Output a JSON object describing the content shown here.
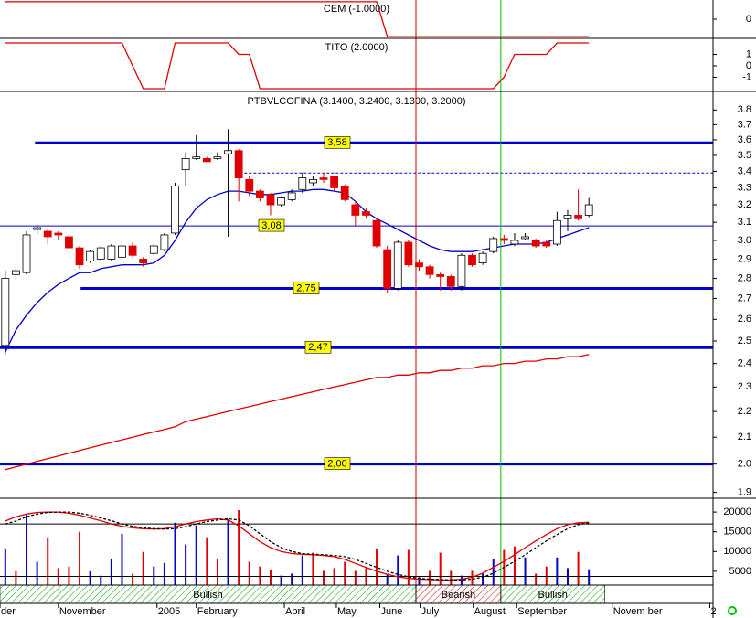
{
  "chart_data": [
    {
      "type": "line",
      "title": "CEM (-1.0000)",
      "xlim": [
        -0.5,
        66.7
      ],
      "ylim": [
        -1.1,
        1.1
      ],
      "yticks": [
        0
      ],
      "x": [
        0,
        1,
        2,
        3,
        4,
        5,
        6,
        7,
        8,
        9,
        10,
        11,
        12,
        13,
        14,
        15,
        16,
        17,
        18,
        19,
        20,
        21,
        22,
        23,
        24,
        25,
        26,
        27,
        28,
        29,
        30,
        31,
        32,
        33,
        34,
        35,
        36,
        37,
        38,
        39,
        40,
        41,
        42,
        43,
        44,
        45,
        46,
        47,
        48,
        49,
        50,
        51,
        52,
        53,
        54,
        55
      ],
      "series": [
        {
          "color": "#e00000",
          "values": [
            1,
            1,
            1,
            1,
            1,
            1,
            1,
            1,
            1,
            1,
            1,
            1,
            1,
            1,
            1,
            1,
            1,
            1,
            1,
            1,
            1,
            1,
            1,
            1,
            1,
            1,
            1,
            1,
            1,
            1,
            1,
            1,
            1,
            1,
            1,
            1,
            -1,
            -1,
            -1,
            -1,
            -1,
            -1,
            -1,
            -1,
            -1,
            -1,
            -1,
            -1,
            -1,
            -1,
            -1,
            -1,
            -1,
            -1,
            -1,
            -1
          ]
        }
      ]
    },
    {
      "type": "line",
      "title": "TITO (2.0000)",
      "xlim": [
        -0.5,
        66.7
      ],
      "ylim": [
        -2.24,
        2.4
      ],
      "yticks": [
        1,
        0,
        -1
      ],
      "x": [
        0,
        1,
        2,
        3,
        4,
        5,
        6,
        7,
        8,
        9,
        10,
        11,
        12,
        13,
        14,
        15,
        16,
        17,
        18,
        19,
        20,
        21,
        22,
        23,
        24,
        25,
        26,
        27,
        28,
        29,
        30,
        31,
        32,
        33,
        34,
        35,
        36,
        37,
        38,
        39,
        40,
        41,
        42,
        43,
        44,
        45,
        46,
        47,
        48,
        49,
        50,
        51,
        52,
        53,
        54,
        55
      ],
      "series": [
        {
          "color": "#e00000",
          "values": [
            2,
            2,
            2,
            2,
            2,
            2,
            2,
            2,
            2,
            2,
            2,
            2,
            0,
            -2,
            -2,
            -2,
            2,
            2,
            2,
            2,
            2,
            2,
            1,
            1,
            -2,
            -2,
            -2,
            -2,
            -2,
            -2,
            -2,
            -2,
            -2,
            -2,
            -2,
            -2,
            -2,
            -2,
            -2,
            -2,
            -2,
            -2,
            -2,
            -2,
            -2,
            -2,
            -2,
            -1,
            1,
            1,
            1,
            1,
            2,
            2,
            2,
            2
          ]
        }
      ]
    },
    {
      "type": "candlestick",
      "title": "PTBVLCOFINA (3.1400, 3.2400, 3.1300, 3.2000)",
      "log_scale": true,
      "xlim": [
        -0.5,
        66.7
      ],
      "ylim": [
        1.88,
        3.93
      ],
      "yticks": [
        3.8,
        3.7,
        3.6,
        3.5,
        3.4,
        3.3,
        3.2,
        3.1,
        {
          "value": 3,
          "label": "3.0"
        },
        2.9,
        2.8,
        2.7,
        2.6,
        2.5,
        2.4,
        2.3,
        2.2,
        2.1,
        {
          "value": 2,
          "label": "2.0"
        },
        1.9
      ],
      "up_color": "#ffffff",
      "down_color": "#e00000",
      "outline_color": "#000000",
      "x": [
        0,
        1,
        2,
        3,
        4,
        5,
        6,
        7,
        8,
        9,
        10,
        11,
        12,
        13,
        14,
        15,
        16,
        17,
        18,
        19,
        20,
        21,
        22,
        23,
        24,
        25,
        26,
        27,
        28,
        29,
        30,
        31,
        32,
        33,
        34,
        35,
        36,
        37,
        38,
        39,
        40,
        41,
        42,
        43,
        44,
        45,
        46,
        47,
        48,
        49,
        50,
        51,
        52,
        53,
        54,
        55
      ],
      "open": [
        2.48,
        2.82,
        2.83,
        3.06,
        3.05,
        3.04,
        3.02,
        2.96,
        2.89,
        2.9,
        2.9,
        2.91,
        2.97,
        2.9,
        2.93,
        2.95,
        3.04,
        3.41,
        3.48,
        3.48,
        3.48,
        3.51,
        3.53,
        3.35,
        3.28,
        3.26,
        3.2,
        3.23,
        3.29,
        3.33,
        3.36,
        3.37,
        3.31,
        3.2,
        3.16,
        3.11,
        2.95,
        2.75,
        2.99,
        2.88,
        2.86,
        2.82,
        2.81,
        2.76,
        2.92,
        2.88,
        2.94,
        3.01,
        2.98,
        3.01,
        3.0,
        2.99,
        2.98,
        3.12,
        3.14,
        3.14
      ],
      "high": [
        2.84,
        2.86,
        3.05,
        3.09,
        3.06,
        3.05,
        3.03,
        2.97,
        2.95,
        2.97,
        2.98,
        2.98,
        2.99,
        2.91,
        2.98,
        3.04,
        3.33,
        3.52,
        3.63,
        3.49,
        3.52,
        3.67,
        3.54,
        3.37,
        3.29,
        3.27,
        3.25,
        3.29,
        3.39,
        3.37,
        3.39,
        3.37,
        3.32,
        3.22,
        3.18,
        3.12,
        2.97,
        3.0,
        3.0,
        2.9,
        2.87,
        2.83,
        2.82,
        2.93,
        2.93,
        2.94,
        3.02,
        3.03,
        3.04,
        3.04,
        3.01,
        3.0,
        3.16,
        3.17,
        3.29,
        3.24
      ],
      "low": [
        2.44,
        2.8,
        2.82,
        3.03,
        2.98,
        3.0,
        2.95,
        2.85,
        2.88,
        2.89,
        2.89,
        2.9,
        2.91,
        2.86,
        2.92,
        2.94,
        3.03,
        3.31,
        3.47,
        3.46,
        3.47,
        3.02,
        3.22,
        3.25,
        3.22,
        3.14,
        3.19,
        3.22,
        3.27,
        3.31,
        3.33,
        3.28,
        3.22,
        3.08,
        3.12,
        2.96,
        2.73,
        2.74,
        2.86,
        2.84,
        2.8,
        2.74,
        2.74,
        2.74,
        2.86,
        2.87,
        2.93,
        2.98,
        2.97,
        3.0,
        2.96,
        2.96,
        2.97,
        3.05,
        3.11,
        3.13
      ],
      "close": [
        2.8,
        2.84,
        3.03,
        3.07,
        3.02,
        3.03,
        2.96,
        2.87,
        2.94,
        2.96,
        2.97,
        2.97,
        2.92,
        2.88,
        2.97,
        3.03,
        3.31,
        3.48,
        3.49,
        3.46,
        3.49,
        3.53,
        3.36,
        3.28,
        3.24,
        3.2,
        3.24,
        3.27,
        3.36,
        3.35,
        3.35,
        3.3,
        3.23,
        3.14,
        3.14,
        2.97,
        2.75,
        2.99,
        2.87,
        2.86,
        2.82,
        2.81,
        2.76,
        2.92,
        2.87,
        2.93,
        3.01,
        3.0,
        3.0,
        3.02,
        2.97,
        2.97,
        3.11,
        3.14,
        3.12,
        3.2
      ],
      "series": [
        {
          "color": "#0000cc",
          "values": [
            2.45,
            2.55,
            2.62,
            2.68,
            2.73,
            2.77,
            2.8,
            2.83,
            2.83,
            2.85,
            2.86,
            2.87,
            2.87,
            2.87,
            2.88,
            2.92,
            3.0,
            3.1,
            3.18,
            3.23,
            3.26,
            3.28,
            3.28,
            3.27,
            3.26,
            3.26,
            3.27,
            3.28,
            3.28,
            3.29,
            3.29,
            3.28,
            3.27,
            3.22,
            3.16,
            3.12,
            3.09,
            3.06,
            3.03,
            3.0,
            2.97,
            2.95,
            2.94,
            2.94,
            2.94,
            2.95,
            2.96,
            2.97,
            2.98,
            2.98,
            2.98,
            2.99,
            3.01,
            3.03,
            3.05,
            3.07
          ]
        },
        {
          "color": "#e00000",
          "values": [
            1.98,
            1.99,
            2.0,
            2.01,
            2.02,
            2.03,
            2.04,
            2.05,
            2.06,
            2.07,
            2.08,
            2.09,
            2.1,
            2.11,
            2.12,
            2.13,
            2.14,
            2.16,
            2.17,
            2.18,
            2.19,
            2.2,
            2.21,
            2.22,
            2.23,
            2.24,
            2.25,
            2.26,
            2.27,
            2.28,
            2.29,
            2.3,
            2.31,
            2.32,
            2.33,
            2.34,
            2.34,
            2.35,
            2.35,
            2.36,
            2.36,
            2.37,
            2.37,
            2.38,
            2.38,
            2.39,
            2.39,
            2.4,
            2.4,
            2.41,
            2.41,
            2.42,
            2.42,
            2.43,
            2.43,
            2.44
          ]
        }
      ],
      "levels": [
        {
          "value": 3.58,
          "label": "3,58",
          "start": 2.8,
          "color": "#0000cc"
        },
        {
          "value": 3.08,
          "label": "3,08",
          "start": -0.5,
          "color": "#0000cc"
        },
        {
          "value": 2.75,
          "label": "2,75",
          "start": 7.1,
          "color": "#0000cc"
        },
        {
          "value": 2.47,
          "label": "2,47",
          "start": -0.5,
          "color": "#0000cc"
        },
        {
          "value": 2.0,
          "label": "2,00",
          "start": -0.5,
          "color": "#0000cc"
        }
      ],
      "reference_lines": [
        {
          "value": 3.39,
          "start": 22.1,
          "dashed": true,
          "color": "#0000cc"
        }
      ],
      "markers": [
        {
          "x": 38.7,
          "color": "#cc0000"
        },
        {
          "x": 46.7,
          "color": "#00c000"
        }
      ]
    },
    {
      "type": "bar",
      "xlim": [
        -0.5,
        66.7
      ],
      "ylim": [
        1500,
        23500
      ],
      "yticks": [
        20000,
        15000,
        10000,
        5000
      ],
      "x": [
        0,
        1,
        2,
        3,
        4,
        5,
        6,
        7,
        8,
        9,
        10,
        11,
        12,
        13,
        14,
        15,
        16,
        17,
        18,
        19,
        20,
        21,
        22,
        23,
        24,
        25,
        26,
        27,
        28,
        29,
        30,
        31,
        32,
        33,
        34,
        35,
        36,
        37,
        38,
        39,
        40,
        41,
        42,
        43,
        44,
        45,
        46,
        47,
        48,
        49,
        50,
        51,
        52,
        53,
        54,
        55
      ],
      "values": [
        10800,
        5000,
        19300,
        7400,
        13600,
        5800,
        6200,
        15000,
        5000,
        3900,
        8100,
        14500,
        4400,
        9900,
        6200,
        7100,
        17300,
        11800,
        16600,
        13600,
        8100,
        18200,
        20500,
        7400,
        6200,
        5300,
        3900,
        4400,
        9000,
        9700,
        5100,
        5800,
        7400,
        5100,
        5800,
        10800,
        4400,
        9000,
        10400,
        3500,
        5100,
        9700,
        5100,
        3900,
        5100,
        4400,
        8100,
        10400,
        11300,
        8500,
        4400,
        6200,
        8500,
        5800,
        9900,
        5500
      ],
      "colors": [
        "#0000cc",
        "#e00000",
        "#0000cc",
        "#0000cc",
        "#e00000",
        "#e00000",
        "#e00000",
        "#e00000",
        "#0000cc",
        "#0000cc",
        "#0000cc",
        "#0000cc",
        "#e00000",
        "#e00000",
        "#0000cc",
        "#0000cc",
        "#0000cc",
        "#0000cc",
        "#0000cc",
        "#e00000",
        "#e00000",
        "#0000cc",
        "#e00000",
        "#e00000",
        "#e00000",
        "#e00000",
        "#0000cc",
        "#0000cc",
        "#0000cc",
        "#e00000",
        "#e00000",
        "#e00000",
        "#e00000",
        "#e00000",
        "#e00000",
        "#e00000",
        "#0000cc",
        "#0000cc",
        "#e00000",
        "#0000cc",
        "#e00000",
        "#e00000",
        "#e00000",
        "#0000cc",
        "#e00000",
        "#0000cc",
        "#0000cc",
        "#e00000",
        "#e00000",
        "#0000cc",
        "#e00000",
        "#e00000",
        "#0000cc",
        "#0000cc",
        "#e00000",
        "#0000cc"
      ],
      "series": [
        {
          "color": "#e00000",
          "values": [
            17700,
            18800,
            19500,
            19900,
            20000,
            20000,
            19700,
            19200,
            18500,
            17800,
            17000,
            16400,
            16000,
            15800,
            15700,
            15800,
            16300,
            17000,
            17600,
            18000,
            18300,
            18000,
            16500,
            14500,
            12500,
            11000,
            10000,
            9500,
            9300,
            9200,
            9000,
            8700,
            8000,
            7000,
            6000,
            5000,
            4200,
            3600,
            3200,
            3000,
            2900,
            2800,
            2800,
            3000,
            3500,
            4500,
            6000,
            7500,
            9200,
            11000,
            12700,
            14300,
            15800,
            16800,
            17300,
            17400
          ]
        },
        {
          "color": "#000000",
          "dashed": true,
          "values": [
            17000,
            17700,
            18800,
            19500,
            19900,
            20000,
            20000,
            19700,
            19200,
            18500,
            17800,
            17000,
            16400,
            16000,
            15800,
            15700,
            15800,
            16300,
            17000,
            17600,
            18000,
            18300,
            18000,
            16500,
            14500,
            12500,
            11000,
            10000,
            9500,
            9300,
            9200,
            9000,
            8700,
            8000,
            7000,
            6000,
            5000,
            4200,
            3600,
            3200,
            3000,
            2900,
            2800,
            2800,
            3000,
            3500,
            4500,
            6000,
            7500,
            9200,
            11000,
            12700,
            14300,
            15800,
            16800,
            17300
          ]
        }
      ],
      "levels": [
        17000,
        3700
      ]
    },
    {
      "type": "band",
      "xlim": [
        -0.5,
        66.7
      ],
      "bands": [
        {
          "label": "Bullish",
          "start": -0.5,
          "end": 38.7,
          "color": "#00a000"
        },
        {
          "label": "Bearish",
          "start": 38.7,
          "end": 46.7,
          "color": "#d00000"
        },
        {
          "label": "Bullish",
          "start": 46.7,
          "end": 56.5,
          "color": "#00a000"
        }
      ],
      "xticks": [
        {
          "value": -0.5,
          "label": "der"
        },
        {
          "value": 5,
          "label": "November"
        },
        {
          "value": 14.3,
          "label": "2005"
        },
        {
          "value": 18,
          "label": "February"
        },
        {
          "value": 26.3,
          "label": "April"
        },
        {
          "value": 31.2,
          "label": "May"
        },
        {
          "value": 35.3,
          "label": "June"
        },
        {
          "value": 39.1,
          "label": "July"
        },
        {
          "value": 44.1,
          "label": "August"
        },
        {
          "value": 48.2,
          "label": "September"
        },
        {
          "value": 57.2,
          "label": "Novem ber"
        },
        {
          "value": 66.4,
          "label": "2"
        }
      ]
    }
  ]
}
